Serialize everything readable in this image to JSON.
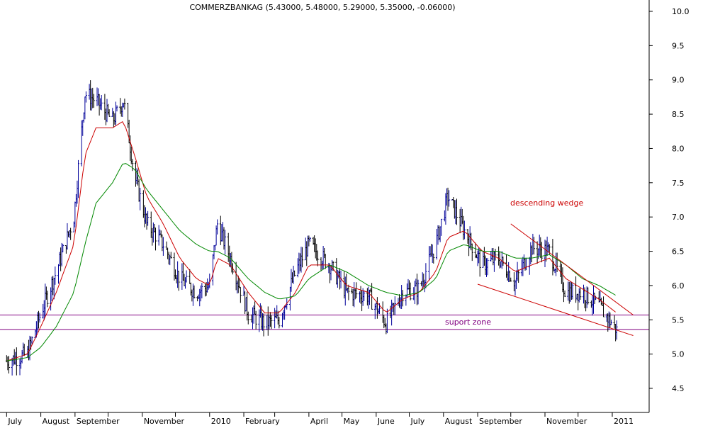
{
  "chart_data": {
    "type": "bar",
    "subtype": "ohlc",
    "title": "COMMERZBANKAG (5.43000, 5.48000, 5.29000, 5.35000, -0.06000)",
    "last_bar": {
      "open": 5.43,
      "high": 5.48,
      "low": 5.29,
      "close": 5.35,
      "change": -0.06
    },
    "ylim": [
      4.2,
      10.2
    ],
    "y_ticks": [
      "10.0",
      "9.5",
      "9.0",
      "8.5",
      "8.0",
      "7.5",
      "7.0",
      "6.5",
      "6.0",
      "5.5",
      "5.0",
      "4.5"
    ],
    "x_tick_labels": [
      "July",
      "August",
      "September",
      "November",
      "2010",
      "February",
      "April",
      "May",
      "June",
      "July",
      "August",
      "September",
      "November",
      "2011"
    ],
    "price_series": [
      {
        "date": "2009-07-01",
        "close": 4.9
      },
      {
        "date": "2009-07-20",
        "close": 5.0
      },
      {
        "date": "2009-08-01",
        "close": 5.6
      },
      {
        "date": "2009-08-15",
        "close": 6.2
      },
      {
        "date": "2009-08-31",
        "close": 7.0
      },
      {
        "date": "2009-09-10",
        "close": 8.8
      },
      {
        "date": "2009-09-20",
        "close": 8.7
      },
      {
        "date": "2009-10-05",
        "close": 8.4
      },
      {
        "date": "2009-10-15",
        "close": 8.7
      },
      {
        "date": "2009-10-25",
        "close": 7.6
      },
      {
        "date": "2009-11-05",
        "close": 6.9
      },
      {
        "date": "2009-11-20",
        "close": 6.6
      },
      {
        "date": "2009-12-05",
        "close": 6.1
      },
      {
        "date": "2009-12-20",
        "close": 5.9
      },
      {
        "date": "2010-01-01",
        "close": 6.0
      },
      {
        "date": "2010-01-08",
        "close": 6.9
      },
      {
        "date": "2010-01-20",
        "close": 6.4
      },
      {
        "date": "2010-02-05",
        "close": 5.6
      },
      {
        "date": "2010-02-20",
        "close": 5.45
      },
      {
        "date": "2010-03-05",
        "close": 5.5
      },
      {
        "date": "2010-03-20",
        "close": 6.2
      },
      {
        "date": "2010-04-01",
        "close": 6.6
      },
      {
        "date": "2010-04-20",
        "close": 6.3
      },
      {
        "date": "2010-05-05",
        "close": 5.9
      },
      {
        "date": "2010-05-25",
        "close": 5.85
      },
      {
        "date": "2010-06-10",
        "close": 5.45
      },
      {
        "date": "2010-06-25",
        "close": 5.9
      },
      {
        "date": "2010-07-10",
        "close": 5.95
      },
      {
        "date": "2010-07-25",
        "close": 6.6
      },
      {
        "date": "2010-08-05",
        "close": 7.3
      },
      {
        "date": "2010-08-20",
        "close": 6.8
      },
      {
        "date": "2010-09-05",
        "close": 6.3
      },
      {
        "date": "2010-09-20",
        "close": 6.4
      },
      {
        "date": "2010-10-05",
        "close": 6.05
      },
      {
        "date": "2010-10-20",
        "close": 6.55
      },
      {
        "date": "2010-11-05",
        "close": 6.5
      },
      {
        "date": "2010-11-20",
        "close": 5.9
      },
      {
        "date": "2010-12-05",
        "close": 5.9
      },
      {
        "date": "2010-12-20",
        "close": 5.7
      },
      {
        "date": "2011-01-05",
        "close": 5.35
      }
    ],
    "moving_averages": [
      {
        "color": "#cc0000",
        "values": [
          4.9,
          5.0,
          5.4,
          5.9,
          6.6,
          7.9,
          8.3,
          8.3,
          8.4,
          7.9,
          7.3,
          6.9,
          6.4,
          6.1,
          6.0,
          6.4,
          6.3,
          5.9,
          5.6,
          5.6,
          5.9,
          6.3,
          6.3,
          6.0,
          5.9,
          5.6,
          5.8,
          5.9,
          6.2,
          6.7,
          6.8,
          6.5,
          6.4,
          6.2,
          6.3,
          6.4,
          6.1,
          5.95,
          5.8,
          5.6
        ]
      },
      {
        "color": "#008800",
        "values": [
          4.9,
          4.95,
          5.1,
          5.4,
          5.9,
          6.6,
          7.2,
          7.5,
          7.8,
          7.7,
          7.4,
          7.1,
          6.8,
          6.6,
          6.5,
          6.5,
          6.4,
          6.1,
          5.9,
          5.8,
          5.85,
          6.1,
          6.3,
          6.2,
          6.0,
          5.9,
          5.85,
          5.9,
          6.1,
          6.5,
          6.6,
          6.5,
          6.5,
          6.4,
          6.4,
          6.45,
          6.3,
          6.1,
          6.0,
          5.85
        ]
      }
    ],
    "support_zone": [
      5.36,
      5.57
    ],
    "wedge_lines": [
      {
        "start": {
          "date": "2010-10-01",
          "value": 6.9
        },
        "end": {
          "date": "2011-01-20",
          "value": 5.57
        }
      },
      {
        "start": {
          "date": "2010-09-01",
          "value": 6.02
        },
        "end": {
          "date": "2011-01-20",
          "value": 5.27
        }
      }
    ],
    "annotations": [
      {
        "text": "descending wedge",
        "color": "#cc0000"
      },
      {
        "text": "suport zone",
        "color": "#800080"
      }
    ],
    "grid": false
  }
}
